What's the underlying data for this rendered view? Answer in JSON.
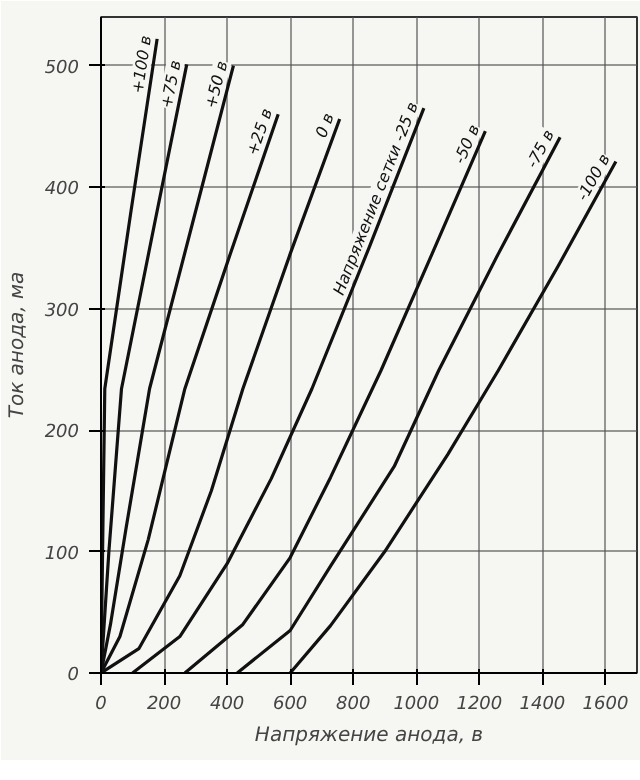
{
  "chart_data": {
    "type": "line",
    "xlabel": "Напряжение анода, в",
    "ylabel": "Ток анода, ма",
    "xlim": [
      0,
      1700
    ],
    "ylim": [
      0,
      540
    ],
    "xticks": [
      0,
      200,
      400,
      600,
      800,
      1000,
      1200,
      1400,
      1600
    ],
    "yticks": [
      0,
      100,
      200,
      300,
      400,
      500
    ],
    "grid": true,
    "marker": "none",
    "line_style": "solid",
    "series": [
      {
        "name": "+100 в",
        "color": "#111111",
        "x": [
          0,
          6,
          12,
          95,
          178
        ],
        "values": [
          0,
          120,
          234,
          380,
          522
        ]
      },
      {
        "name": "+75 в",
        "color": "#111111",
        "x": [
          0,
          25,
          65,
          170,
          272
        ],
        "values": [
          0,
          100,
          234,
          370,
          501
        ]
      },
      {
        "name": "+50 в",
        "color": "#111111",
        "x": [
          0,
          30,
          80,
          154,
          290,
          420
        ],
        "values": [
          0,
          40,
          120,
          234,
          370,
          500
        ]
      },
      {
        "name": "+25 в",
        "color": "#111111",
        "x": [
          0,
          60,
          150,
          266,
          410,
          562
        ],
        "values": [
          0,
          30,
          110,
          234,
          345,
          460
        ]
      },
      {
        "name": "0 в",
        "color": "#111111",
        "x": [
          0,
          120,
          250,
          350,
          450,
          600,
          757
        ],
        "values": [
          0,
          20,
          80,
          150,
          234,
          345,
          456
        ]
      },
      {
        "name": "Напряжение сетки -25 в",
        "color": "#111111",
        "x": [
          100,
          250,
          400,
          540,
          669,
          850,
          1024
        ],
        "values": [
          0,
          30,
          90,
          160,
          234,
          350,
          465
        ]
      },
      {
        "name": "-50 в",
        "color": "#111111",
        "x": [
          266,
          450,
          600,
          728,
          888,
          1050,
          1219
        ],
        "values": [
          0,
          40,
          95,
          161,
          249,
          345,
          446
        ]
      },
      {
        "name": "-75 в",
        "color": "#111111",
        "x": [
          432,
          600,
          728,
          930,
          1071,
          1260,
          1456
        ],
        "values": [
          0,
          35,
          88,
          170,
          249,
          345,
          441
        ]
      },
      {
        "name": "-100 в",
        "color": "#111111",
        "x": [
          600,
          728,
          900,
          1100,
          1260,
          1450,
          1633
        ],
        "values": [
          0,
          39,
          100,
          180,
          249,
          335,
          421
        ]
      }
    ]
  }
}
